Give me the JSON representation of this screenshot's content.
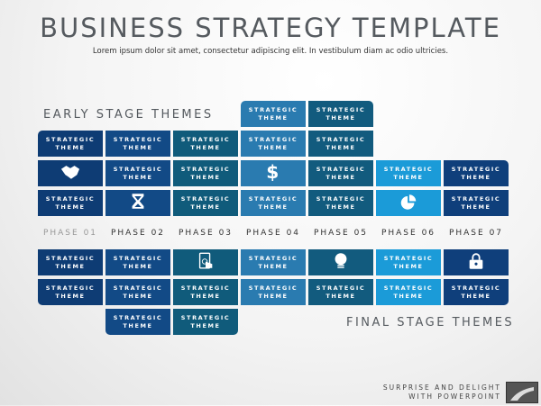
{
  "header": {
    "title": "BUSINESS STRATEGY TEMPLATE",
    "subtitle": "Lorem ipsum dolor sit amet, consectetur adipiscing elit. In vestibulum diam ac odio ultricies."
  },
  "sections": {
    "early": "EARLY STAGE THEMES",
    "final": "FINAL STAGE THEMES"
  },
  "tile_label": {
    "line1": "STRATEGIC",
    "line2": "THEME"
  },
  "columns": [
    {
      "phase": "PHASE 01",
      "color": "#0e3c74",
      "top": [
        "text",
        "handshake-icon",
        "text"
      ],
      "bottom": [
        "text",
        "text"
      ]
    },
    {
      "phase": "PHASE 02",
      "color": "#124a86",
      "top": [
        "text",
        "text",
        "hourglass-icon"
      ],
      "bottom": [
        "text",
        "text",
        "text"
      ]
    },
    {
      "phase": "PHASE 03",
      "color": "#105b7b",
      "top": [
        "text",
        "text",
        "text"
      ],
      "bottom": [
        "tablet-touch-icon",
        "text",
        "text"
      ]
    },
    {
      "phase": "PHASE 04",
      "color": "#2a7bb0",
      "top": [
        "text",
        "text",
        "dollar-icon",
        "text"
      ],
      "bottom": [
        "text",
        "text"
      ]
    },
    {
      "phase": "PHASE 05",
      "color": "#125b7e",
      "top": [
        "text",
        "text",
        "text",
        "text"
      ],
      "bottom": [
        "lightbulb-icon",
        "text"
      ]
    },
    {
      "phase": "PHASE 06",
      "color": "#1b9bd8",
      "top": [
        "text",
        "pie-chart-icon"
      ],
      "bottom": [
        "text",
        "text"
      ]
    },
    {
      "phase": "PHASE 07",
      "color": "#0f3f7b",
      "top": [
        "text",
        "text"
      ],
      "bottom": [
        "lock-icon",
        "text"
      ]
    }
  ],
  "footer": {
    "line1": "SURPRISE AND DELIGHT",
    "line2": "WITH POWERPOINT"
  }
}
